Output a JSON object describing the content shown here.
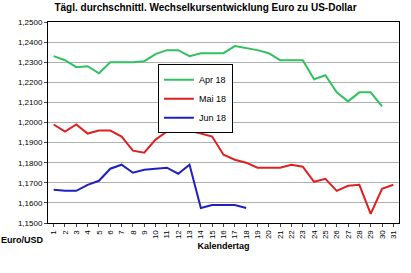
{
  "chart_data": {
    "type": "line",
    "title": "Tägl. durchschnittl. Wechselkursentwicklung Euro zu US-Dollar",
    "x_label": "Kalendertag",
    "y_label": "Euro/USD",
    "x": [
      1,
      2,
      3,
      4,
      5,
      6,
      7,
      8,
      9,
      10,
      11,
      12,
      13,
      14,
      15,
      16,
      17,
      18,
      19,
      20,
      21,
      22,
      23,
      24,
      25,
      26,
      27,
      28,
      29,
      30,
      31
    ],
    "series": [
      {
        "name": "Apr 18",
        "color": "#33c060",
        "values": [
          1.233,
          1.231,
          1.2275,
          1.228,
          1.2245,
          1.23,
          1.23,
          1.23,
          1.2305,
          1.234,
          1.236,
          1.236,
          1.233,
          1.2345,
          1.2345,
          1.2345,
          1.238,
          1.237,
          1.236,
          1.2345,
          1.231,
          1.231,
          1.231,
          1.2215,
          1.2235,
          1.215,
          1.2105,
          1.215,
          1.215,
          1.208,
          null
        ]
      },
      {
        "name": "Mai 18",
        "color": "#e02020",
        "values": [
          1.199,
          1.1955,
          1.199,
          1.1945,
          1.196,
          1.196,
          1.193,
          1.186,
          1.185,
          1.1915,
          1.1955,
          1.1975,
          1.196,
          1.1945,
          1.193,
          1.184,
          1.1815,
          1.18,
          1.1775,
          1.1775,
          1.1775,
          1.179,
          1.178,
          1.1705,
          1.172,
          1.166,
          1.1685,
          1.169,
          1.1545,
          1.167,
          1.169
        ]
      },
      {
        "name": "Jun 18",
        "color": "#2020c0",
        "values": [
          1.1665,
          1.166,
          1.166,
          1.169,
          1.171,
          1.177,
          1.179,
          1.175,
          1.1765,
          1.177,
          1.1775,
          1.1745,
          1.179,
          1.1575,
          1.159,
          1.159,
          1.159,
          1.1575,
          null,
          null,
          null,
          null,
          null,
          null,
          null,
          null,
          null,
          null,
          null,
          null,
          null
        ]
      }
    ],
    "xlim": [
      0.5,
      31.5
    ],
    "xticks": [
      1,
      2,
      3,
      4,
      5,
      6,
      7,
      8,
      9,
      10,
      11,
      12,
      13,
      14,
      15,
      16,
      17,
      18,
      19,
      20,
      21,
      22,
      23,
      24,
      25,
      26,
      27,
      28,
      29,
      30,
      31
    ],
    "ylim": [
      1.15,
      1.25
    ],
    "yticks": [
      {
        "value": 1.15,
        "label": "1,1500"
      },
      {
        "value": 1.16,
        "label": "1,1600"
      },
      {
        "value": 1.17,
        "label": "1,1700"
      },
      {
        "value": 1.18,
        "label": "1,1800"
      },
      {
        "value": 1.19,
        "label": "1,1900"
      },
      {
        "value": 1.2,
        "label": "1,2000"
      },
      {
        "value": 1.21,
        "label": "1,2100"
      },
      {
        "value": 1.22,
        "label": "1,2200"
      },
      {
        "value": 1.23,
        "label": "1,2300"
      },
      {
        "value": 1.24,
        "label": "1,2400"
      },
      {
        "value": 1.25,
        "label": "1,2500"
      }
    ],
    "grid": true,
    "legend": "top"
  }
}
